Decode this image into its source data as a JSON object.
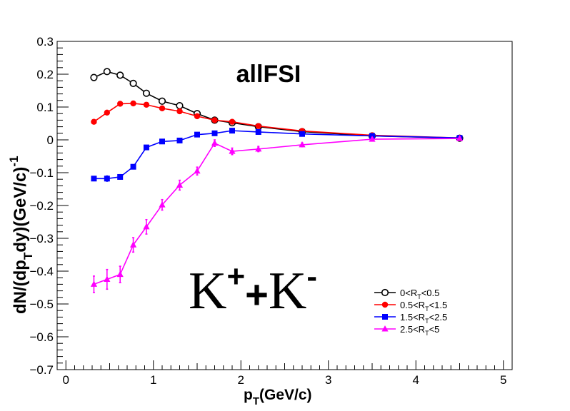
{
  "chart_data": {
    "type": "line",
    "title": "",
    "annotation_main": "allFSI",
    "annotation_particle": {
      "k1": "K",
      "sup1": "+",
      "plus": "+",
      "k2": "K",
      "sup2": "-"
    },
    "xlabel": {
      "main": "p",
      "sub": "T",
      "rest": "(GeV/c)"
    },
    "ylabel": {
      "p1": "dN/(dp",
      "sub": "T",
      "p2": "dy)(GeV/c)",
      "sup": "-1"
    },
    "xlim": [
      -0.1,
      5.1
    ],
    "ylim": [
      -0.7,
      0.3
    ],
    "xticks": [
      0,
      1,
      2,
      3,
      4,
      5
    ],
    "yticks": [
      0.3,
      0.2,
      0.1,
      0,
      -0.1,
      -0.2,
      -0.3,
      -0.4,
      -0.5,
      -0.6,
      -0.7
    ],
    "ytick_labels": [
      "0.3",
      "0.2",
      "0.1",
      "0",
      "−0.1",
      "−0.2",
      "−0.3",
      "−0.4",
      "−0.5",
      "−0.6",
      "−0.7"
    ],
    "legend_position": "bottom-right",
    "series": [
      {
        "name": "0<R_T<0.5",
        "legend": {
          "a": "0<R",
          "sub": "T",
          "b": "<0.5"
        },
        "color": "#000000",
        "marker": "open-circle",
        "x": [
          0.32,
          0.47,
          0.62,
          0.77,
          0.92,
          1.1,
          1.3,
          1.5,
          1.7,
          1.9,
          2.2,
          2.7,
          3.5,
          4.5
        ],
        "y": [
          0.19,
          0.208,
          0.197,
          0.172,
          0.142,
          0.118,
          0.104,
          0.08,
          0.06,
          0.052,
          0.04,
          0.025,
          0.012,
          0.005
        ],
        "err": [
          0.004,
          0.004,
          0.004,
          0.004,
          0.004,
          0.003,
          0.003,
          0.003,
          0.003,
          0.003,
          0.002,
          0.002,
          0.002,
          0.002
        ]
      },
      {
        "name": "0.5<R_T<1.5",
        "legend": {
          "a": "0.5<R",
          "sub": "T",
          "b": "<1.5"
        },
        "color": "#ff0000",
        "marker": "filled-circle",
        "x": [
          0.32,
          0.47,
          0.62,
          0.77,
          0.92,
          1.1,
          1.3,
          1.5,
          1.7,
          1.9,
          2.2,
          2.7,
          3.5,
          4.5
        ],
        "y": [
          0.055,
          0.083,
          0.11,
          0.111,
          0.107,
          0.096,
          0.087,
          0.072,
          0.06,
          0.055,
          0.042,
          0.027,
          0.014,
          0.006
        ],
        "err": [
          0.003,
          0.003,
          0.003,
          0.003,
          0.003,
          0.003,
          0.003,
          0.003,
          0.003,
          0.002,
          0.002,
          0.002,
          0.002,
          0.002
        ]
      },
      {
        "name": "1.5<R_T<2.5",
        "legend": {
          "a": "1.5<R",
          "sub": "T",
          "b": "<2.5"
        },
        "color": "#0000ff",
        "marker": "filled-square",
        "x": [
          0.32,
          0.47,
          0.62,
          0.77,
          0.92,
          1.1,
          1.3,
          1.5,
          1.7,
          1.9,
          2.2,
          2.7,
          3.5,
          4.5
        ],
        "y": [
          -0.118,
          -0.118,
          -0.113,
          -0.082,
          -0.023,
          -0.005,
          -0.002,
          0.016,
          0.02,
          0.028,
          0.024,
          0.018,
          0.012,
          0.006
        ],
        "err": [
          0.006,
          0.008,
          0.007,
          0.006,
          0.005,
          0.004,
          0.004,
          0.004,
          0.004,
          0.004,
          0.003,
          0.003,
          0.003,
          0.003
        ]
      },
      {
        "name": "2.5<R_T<5",
        "legend": {
          "a": "2.5<R",
          "sub": "T",
          "b": "<5"
        },
        "color": "#ff00ff",
        "marker": "filled-triangle",
        "x": [
          0.32,
          0.47,
          0.62,
          0.77,
          0.92,
          1.1,
          1.3,
          1.5,
          1.7,
          1.9,
          2.2,
          2.7,
          3.5,
          4.5
        ],
        "y": [
          -0.44,
          -0.425,
          -0.41,
          -0.32,
          -0.265,
          -0.198,
          -0.138,
          -0.095,
          -0.01,
          -0.035,
          -0.028,
          -0.015,
          0.002,
          0.004
        ],
        "err": [
          0.025,
          0.03,
          0.025,
          0.022,
          0.022,
          0.016,
          0.015,
          0.012,
          0.01,
          0.01,
          0.008,
          0.006,
          0.005,
          0.005
        ]
      }
    ]
  }
}
